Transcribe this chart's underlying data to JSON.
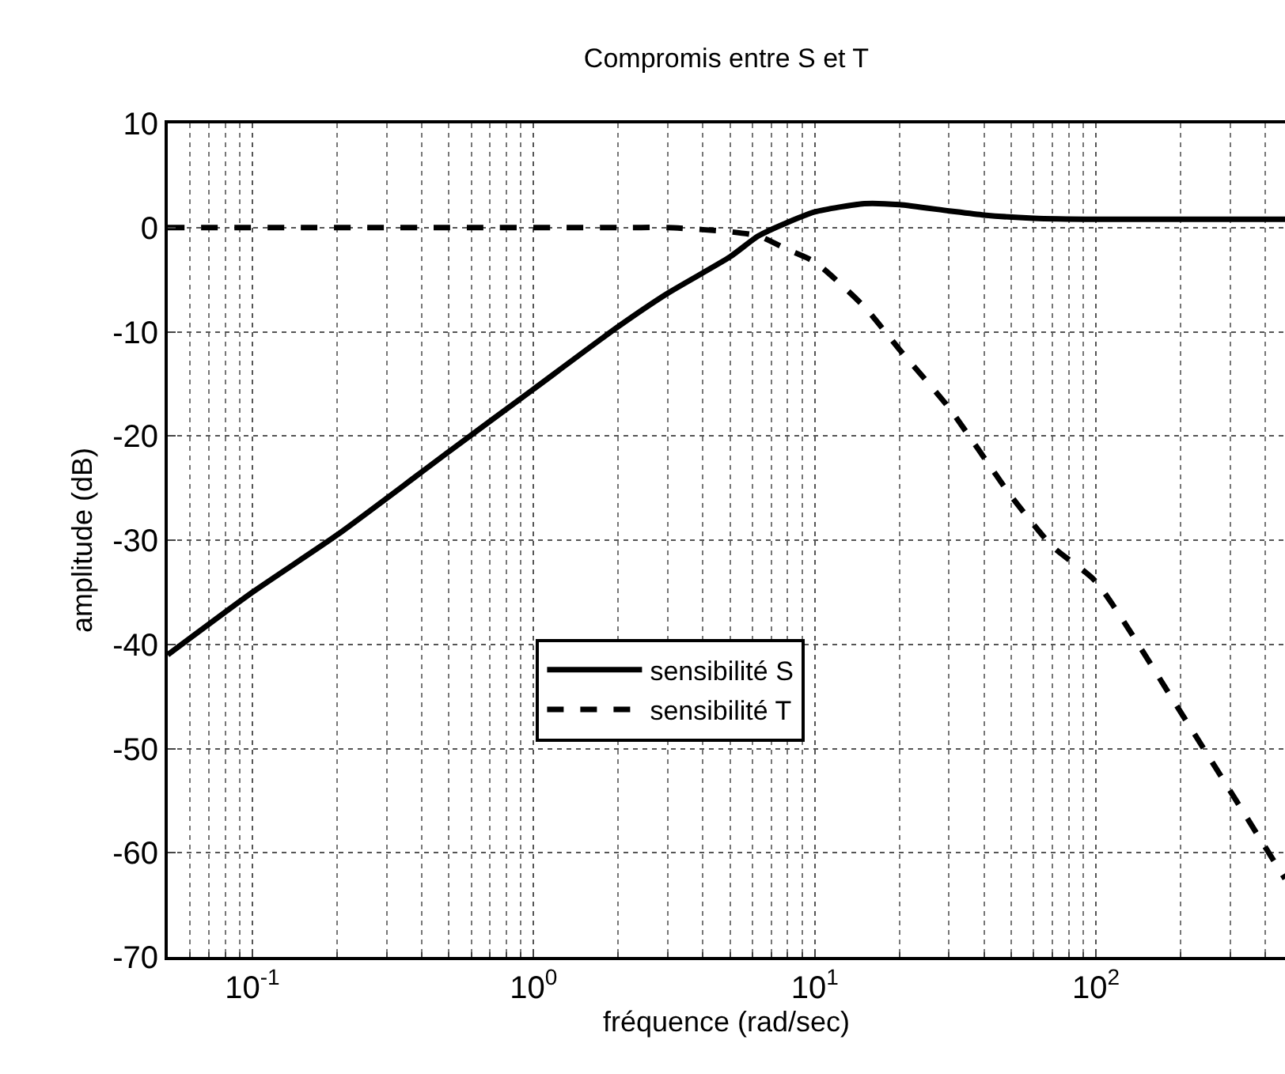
{
  "chart_data": {
    "type": "line",
    "title": "Compromis entre S et T",
    "xlabel": "fréquence (rad/sec)",
    "ylabel": "amplitude (dB)",
    "log": "x",
    "grid": true,
    "legend": "center",
    "marker": "none",
    "xlim": [
      0.05,
      470
    ],
    "ylim": [
      -70,
      10
    ],
    "xticks": [
      {
        "value": 0.1,
        "label": "10$^{-1}$"
      },
      {
        "value": 1,
        "label": "10$^{0}$"
      },
      {
        "value": 10,
        "label": "10$^{1}$"
      },
      {
        "value": 100,
        "label": "10$^{2}$"
      }
    ],
    "yticks": [
      -70,
      -60,
      -50,
      -40,
      -30,
      -20,
      -10,
      0,
      10
    ],
    "series": [
      {
        "name": "sensibilité S",
        "color": "#000000",
        "line_style": "solid",
        "x": [
          0.05,
          0.1,
          0.2,
          0.5,
          1,
          2,
          3,
          5,
          6.3,
          8,
          10,
          15,
          20,
          30,
          40,
          60,
          100,
          470
        ],
        "values": [
          -41,
          -35,
          -29.5,
          -21.5,
          -15.5,
          -9.5,
          -6.3,
          -2.8,
          -0.8,
          0.5,
          1.5,
          2.3,
          2.2,
          1.6,
          1.2,
          0.9,
          0.8,
          0.8
        ]
      },
      {
        "name": "sensibilité T",
        "color": "#000000",
        "line_style": "dashed",
        "x": [
          0.05,
          0.5,
          2,
          3,
          4,
          5,
          6.3,
          8,
          10,
          15,
          20,
          30,
          50,
          70,
          100,
          200,
          470
        ],
        "values": [
          0,
          0,
          0,
          0,
          -0.2,
          -0.4,
          -0.8,
          -2.1,
          -3.3,
          -7.6,
          -11.7,
          -17.3,
          -25.8,
          -30.6,
          -34,
          -46.5,
          -62.5
        ]
      }
    ]
  }
}
